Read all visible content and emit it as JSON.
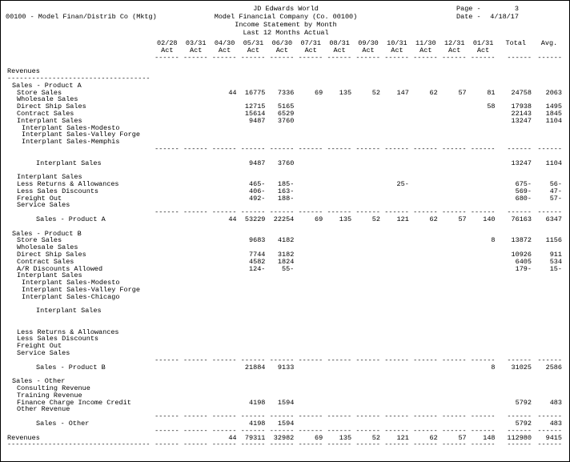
{
  "header": {
    "system_title": "JD Edwards World",
    "company_id": "00100 - Model Finan/Distrib Co (Mktg)",
    "company_title": "Model Financial Company (Co. 00100)",
    "report_title": "Income Statement by Month",
    "report_subtitle": "Last 12 Months Actual",
    "page_label": "Page -",
    "page_value": "3",
    "date_label": "Date -",
    "date_value": "4/18/17"
  },
  "table": {
    "columns": [
      "02/28",
      "03/31",
      "04/30",
      "05/31",
      "06/30",
      "07/31",
      "08/31",
      "09/30",
      "10/31",
      "11/30",
      "12/31",
      "01/31",
      "Total",
      "Avg."
    ],
    "period_sub_label": "Act",
    "rows": [
      {
        "type": "blank"
      },
      {
        "type": "label",
        "indent": 0,
        "label": "Revenues"
      },
      {
        "type": "labelsep"
      },
      {
        "type": "label",
        "indent": 1,
        "label": "Sales - Product A"
      },
      {
        "type": "data",
        "indent": 2,
        "label": "Store Sales",
        "cells": [
          "",
          "",
          "44",
          "16775",
          "7336",
          "69",
          "135",
          "52",
          "147",
          "62",
          "57",
          "81",
          "24758",
          "2063"
        ]
      },
      {
        "type": "label",
        "indent": 2,
        "label": "Wholesale Sales"
      },
      {
        "type": "data",
        "indent": 2,
        "label": "Direct Ship Sales",
        "cells": [
          "",
          "",
          "",
          "12715",
          "5165",
          "",
          "",
          "",
          "",
          "",
          "",
          "58",
          "17938",
          "1495"
        ]
      },
      {
        "type": "data",
        "indent": 2,
        "label": "Contract Sales",
        "cells": [
          "",
          "",
          "",
          "15614",
          "6529",
          "",
          "",
          "",
          "",
          "",
          "",
          "",
          "22143",
          "1845"
        ]
      },
      {
        "type": "data",
        "indent": 2,
        "label": "Interplant Sales",
        "cells": [
          "",
          "",
          "",
          "9487",
          "3760",
          "",
          "",
          "",
          "",
          "",
          "",
          "",
          "13247",
          "1104"
        ]
      },
      {
        "type": "label",
        "indent": 3,
        "label": "Interplant Sales-Modesto"
      },
      {
        "type": "label",
        "indent": 3,
        "label": "Interplant Sales-Valley Forge"
      },
      {
        "type": "label",
        "indent": 3,
        "label": "Interplant Sales-Memphis"
      },
      {
        "type": "sep"
      },
      {
        "type": "blank"
      },
      {
        "type": "data",
        "indent": 6,
        "label": "Interplant Sales",
        "cells": [
          "",
          "",
          "",
          "9487",
          "3760",
          "",
          "",
          "",
          "",
          "",
          "",
          "",
          "13247",
          "1104"
        ]
      },
      {
        "type": "blank"
      },
      {
        "type": "label",
        "indent": 2,
        "label": "Interplant Sales"
      },
      {
        "type": "data",
        "indent": 2,
        "label": "Less Returns & Allowances",
        "cells": [
          "",
          "",
          "",
          "465-",
          "185-",
          "",
          "",
          "",
          "25-",
          "",
          "",
          "",
          "675-",
          "56-"
        ]
      },
      {
        "type": "data",
        "indent": 2,
        "label": "Less Sales Discounts",
        "cells": [
          "",
          "",
          "",
          "406-",
          "163-",
          "",
          "",
          "",
          "",
          "",
          "",
          "",
          "569-",
          "47-"
        ]
      },
      {
        "type": "data",
        "indent": 2,
        "label": "Freight Out",
        "cells": [
          "",
          "",
          "",
          "492-",
          "188-",
          "",
          "",
          "",
          "",
          "",
          "",
          "",
          "680-",
          "57-"
        ]
      },
      {
        "type": "label",
        "indent": 2,
        "label": "Service Sales"
      },
      {
        "type": "sep"
      },
      {
        "type": "data",
        "indent": 6,
        "label": "Sales - Product A",
        "cells": [
          "",
          "",
          "44",
          "53229",
          "22254",
          "69",
          "135",
          "52",
          "121",
          "62",
          "57",
          "140",
          "76163",
          "6347"
        ]
      },
      {
        "type": "blank"
      },
      {
        "type": "label",
        "indent": 1,
        "label": "Sales - Product B"
      },
      {
        "type": "data",
        "indent": 2,
        "label": "Store Sales",
        "cells": [
          "",
          "",
          "",
          "9683",
          "4182",
          "",
          "",
          "",
          "",
          "",
          "",
          "8",
          "13872",
          "1156"
        ]
      },
      {
        "type": "label",
        "indent": 2,
        "label": "Wholesale Sales"
      },
      {
        "type": "data",
        "indent": 2,
        "label": "Direct Ship Sales",
        "cells": [
          "",
          "",
          "",
          "7744",
          "3182",
          "",
          "",
          "",
          "",
          "",
          "",
          "",
          "10926",
          "911"
        ]
      },
      {
        "type": "data",
        "indent": 2,
        "label": "Contract Sales",
        "cells": [
          "",
          "",
          "",
          "4582",
          "1824",
          "",
          "",
          "",
          "",
          "",
          "",
          "",
          "6405",
          "534"
        ]
      },
      {
        "type": "data",
        "indent": 2,
        "label": "A/R Discounts Allowed",
        "cells": [
          "",
          "",
          "",
          "124-",
          "55-",
          "",
          "",
          "",
          "",
          "",
          "",
          "",
          "179-",
          "15-"
        ]
      },
      {
        "type": "label",
        "indent": 2,
        "label": "Interplant Sales"
      },
      {
        "type": "label",
        "indent": 3,
        "label": "Interplant Sales-Modesto"
      },
      {
        "type": "label",
        "indent": 3,
        "label": "Interplant Sales-Valley Forge"
      },
      {
        "type": "label",
        "indent": 3,
        "label": "Interplant Sales-Chicago"
      },
      {
        "type": "blank"
      },
      {
        "type": "label",
        "indent": 6,
        "label": "Interplant Sales"
      },
      {
        "type": "blank"
      },
      {
        "type": "blank"
      },
      {
        "type": "label",
        "indent": 2,
        "label": "Less Returns & Allowances"
      },
      {
        "type": "label",
        "indent": 2,
        "label": "Less Sales Discounts"
      },
      {
        "type": "label",
        "indent": 2,
        "label": "Freight Out"
      },
      {
        "type": "label",
        "indent": 2,
        "label": "Service Sales"
      },
      {
        "type": "sep"
      },
      {
        "type": "data",
        "indent": 6,
        "label": "Sales - Product B",
        "cells": [
          "",
          "",
          "",
          "21884",
          "9133",
          "",
          "",
          "",
          "",
          "",
          "",
          "8",
          "31025",
          "2586"
        ]
      },
      {
        "type": "blank"
      },
      {
        "type": "label",
        "indent": 1,
        "label": "Sales - Other"
      },
      {
        "type": "label",
        "indent": 2,
        "label": "Consulting Revenue"
      },
      {
        "type": "label",
        "indent": 2,
        "label": "Training Revenue"
      },
      {
        "type": "data",
        "indent": 2,
        "label": "Finance Charge Income Credit",
        "cells": [
          "",
          "",
          "",
          "4198",
          "1594",
          "",
          "",
          "",
          "",
          "",
          "",
          "",
          "5792",
          "483"
        ]
      },
      {
        "type": "label",
        "indent": 2,
        "label": "Other Revenue"
      },
      {
        "type": "sep"
      },
      {
        "type": "data",
        "indent": 6,
        "label": "Sales - Other",
        "cells": [
          "",
          "",
          "",
          "4198",
          "1594",
          "",
          "",
          "",
          "",
          "",
          "",
          "",
          "5792",
          "483"
        ]
      },
      {
        "type": "sep"
      },
      {
        "type": "data",
        "indent": 0,
        "label": "Revenues",
        "cells": [
          "",
          "",
          "44",
          "79311",
          "32982",
          "69",
          "135",
          "52",
          "121",
          "62",
          "57",
          "148",
          "112980",
          "9415"
        ]
      },
      {
        "type": "finalsep"
      }
    ]
  }
}
